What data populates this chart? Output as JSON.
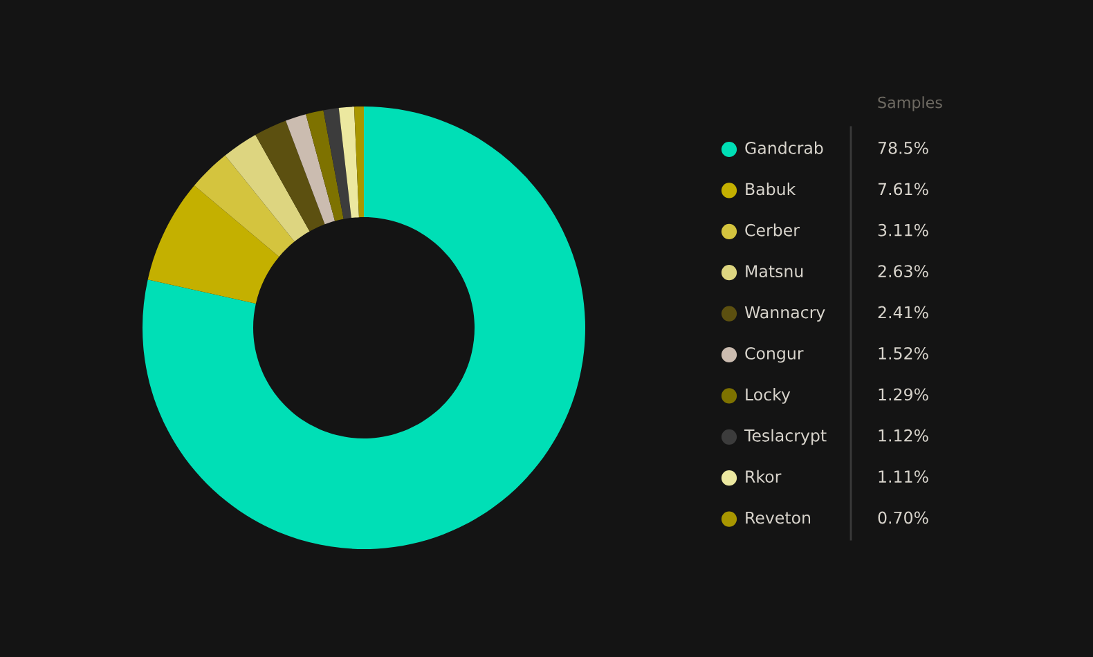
{
  "chart_data": {
    "type": "donut",
    "legend_title": "Samples",
    "legend": "right",
    "categories": [
      "Gandcrab",
      "Babuk",
      "Cerber",
      "Matsnu",
      "Wannacry",
      "Congur",
      "Locky",
      "Teslacrypt",
      "Rkor",
      "Reveton"
    ],
    "values": [
      78.5,
      7.61,
      3.11,
      2.63,
      2.41,
      1.52,
      1.29,
      1.12,
      1.11,
      0.7
    ],
    "value_labels": [
      "78.5%",
      "7.61%",
      "3.11%",
      "2.63%",
      "2.41%",
      "1.52%",
      "1.29%",
      "1.12%",
      "1.11%",
      "0.70%"
    ],
    "colors": [
      "#00dfb6",
      "#c4b000",
      "#d4c43e",
      "#ddd580",
      "#5c5010",
      "#cbbcb0",
      "#7e7200",
      "#3c3c3c",
      "#ece8a0",
      "#a89600"
    ]
  }
}
